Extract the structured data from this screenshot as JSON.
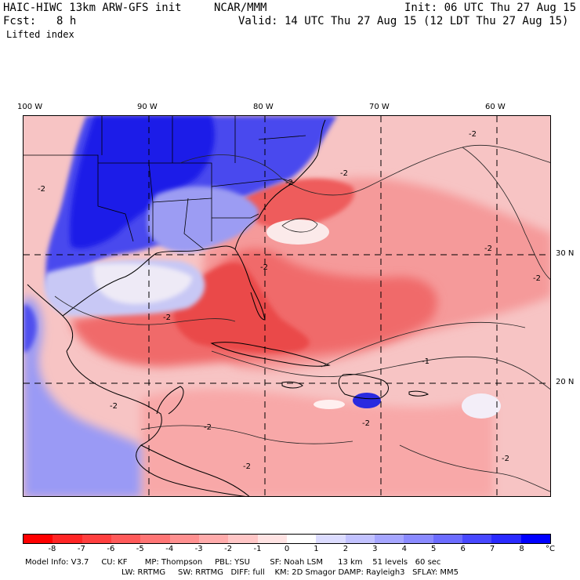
{
  "header": {
    "model_line": "HAIC-HIWC 13km ARW-GFS init",
    "org": "NCAR/MMM",
    "init": "Init: 06 UTC Thu 27 Aug 15",
    "fcst_label": "Fcst:",
    "fcst_value": "8 h",
    "valid": "Valid: 14 UTC Thu 27 Aug 15 (12 LDT Thu 27 Aug 15)",
    "field": "Lifted index"
  },
  "axes": {
    "lon_labels": [
      "100 W",
      "90 W",
      "80 W",
      "70 W",
      "60 W"
    ],
    "lat_labels": [
      "30 N",
      "20 N"
    ]
  },
  "contours": {
    "labels": [
      "-2",
      "-2",
      "-2",
      "-2",
      "-2",
      "-2",
      "-2",
      "-2",
      "-1",
      "-2",
      "-2",
      "-2",
      "-2",
      "-2"
    ]
  },
  "colorbar": {
    "labels": [
      "-8",
      "-7",
      "-6",
      "-5",
      "-4",
      "-3",
      "-2",
      "-1",
      "0",
      "1",
      "2",
      "3",
      "4",
      "5",
      "6",
      "7",
      "8"
    ],
    "unit": "°C",
    "colors": [
      "#ff0000",
      "#ff2525",
      "#ff3f3f",
      "#ff5a5a",
      "#ff7575",
      "#ff9090",
      "#ffabab",
      "#ffc6c6",
      "#ffe3e3",
      "#ffffff",
      "#dcdcff",
      "#c2c2ff",
      "#a6a6ff",
      "#8a8aff",
      "#6c6cff",
      "#4848ff",
      "#2a2aff",
      "#0000ff"
    ]
  },
  "model_info": {
    "line1": "Model Info: V3.7     CU: KF       MP: Thompson     PBL: YSU        SF: Noah LSM      13 km    51 levels   60 sec",
    "line2": "LW: RRTMG     SW: RRTMG   DIFF: full    KM: 2D Smagor DAMP: Rayleigh3   SFLAY: MM5"
  }
}
